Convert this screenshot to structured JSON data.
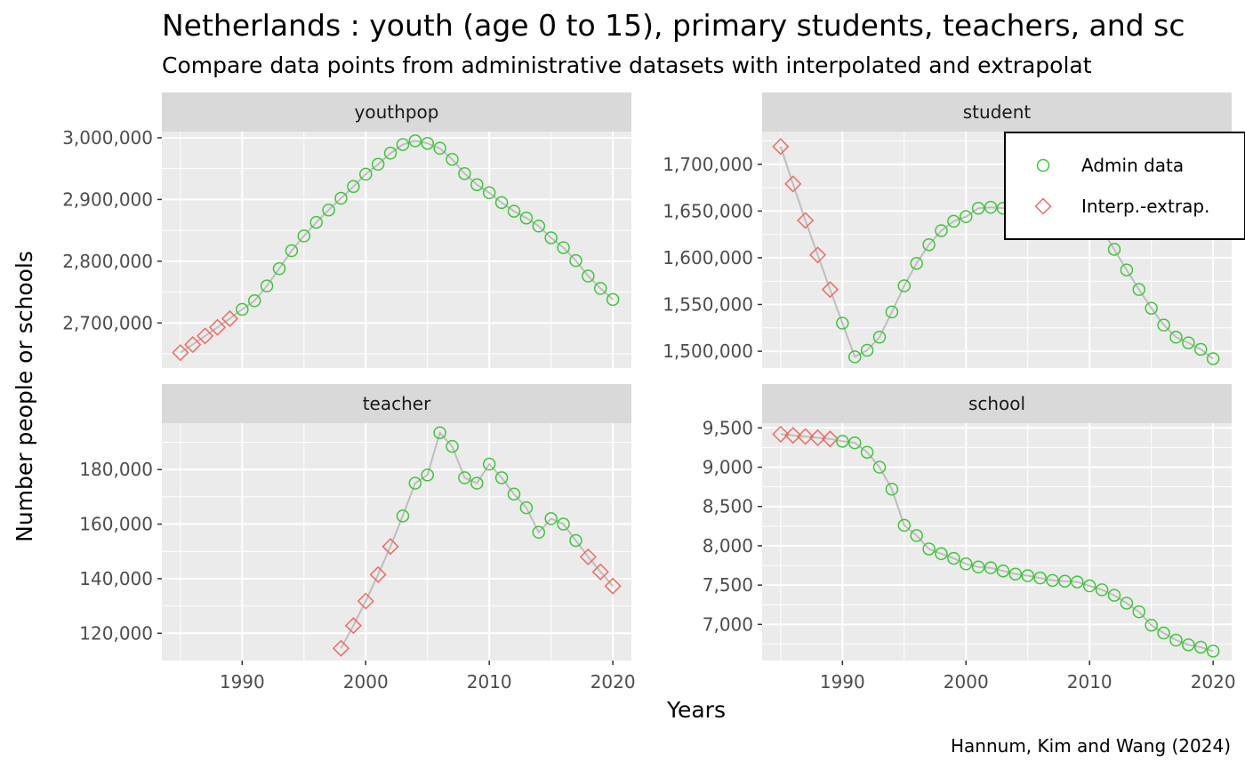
{
  "chart_data": {
    "type": "line",
    "title": "Netherlands : youth (age 0 to 15), primary students, teachers, and sc",
    "subtitle": "Compare data points from administrative datasets with interpolated and extrapolat",
    "xlabel": "Years",
    "ylabel": "Number people or schools",
    "caption": "Hannum, Kim and Wang (2024)",
    "legend": {
      "position": "top-right",
      "entries": [
        {
          "key": "admin",
          "label": "Admin data",
          "shape": "circle",
          "color": "#3fc63a"
        },
        {
          "key": "interp",
          "label": "Interp.-extrap.",
          "shape": "diamond",
          "color": "#f06b63"
        }
      ]
    },
    "line_color": "#bebebe",
    "panel_color": "#ebebeb",
    "strip_color": "#d9d9d9",
    "grid": true,
    "xlim": [
      1983.5,
      2021.5
    ],
    "xticks": [
      1990,
      2000,
      2010,
      2020
    ],
    "panels": [
      {
        "name": "youthpop",
        "ylim": [
          2627000,
          3010000
        ],
        "yticks": [
          2700000,
          2800000,
          2900000,
          3000000
        ],
        "ytick_labels": [
          "2,700,000",
          "2,800,000",
          "2,900,000",
          "3,000,000"
        ],
        "points": [
          [
            1985,
            2652000,
            "interp"
          ],
          [
            1986,
            2665000,
            "interp"
          ],
          [
            1987,
            2679000,
            "interp"
          ],
          [
            1988,
            2693000,
            "interp"
          ],
          [
            1989,
            2707000,
            "interp"
          ],
          [
            1990,
            2722000,
            "admin"
          ],
          [
            1991,
            2736000,
            "admin"
          ],
          [
            1992,
            2760000,
            "admin"
          ],
          [
            1993,
            2788000,
            "admin"
          ],
          [
            1994,
            2817000,
            "admin"
          ],
          [
            1995,
            2841000,
            "admin"
          ],
          [
            1996,
            2863000,
            "admin"
          ],
          [
            1997,
            2883000,
            "admin"
          ],
          [
            1998,
            2902000,
            "admin"
          ],
          [
            1999,
            2921000,
            "admin"
          ],
          [
            2000,
            2941000,
            "admin"
          ],
          [
            2001,
            2957000,
            "admin"
          ],
          [
            2002,
            2975000,
            "admin"
          ],
          [
            2003,
            2989000,
            "admin"
          ],
          [
            2004,
            2995000,
            "admin"
          ],
          [
            2005,
            2991000,
            "admin"
          ],
          [
            2006,
            2983000,
            "admin"
          ],
          [
            2007,
            2965000,
            "admin"
          ],
          [
            2008,
            2942000,
            "admin"
          ],
          [
            2009,
            2924000,
            "admin"
          ],
          [
            2010,
            2911000,
            "admin"
          ],
          [
            2011,
            2895000,
            "admin"
          ],
          [
            2012,
            2881000,
            "admin"
          ],
          [
            2013,
            2870000,
            "admin"
          ],
          [
            2014,
            2857000,
            "admin"
          ],
          [
            2015,
            2838000,
            "admin"
          ],
          [
            2016,
            2822000,
            "admin"
          ],
          [
            2017,
            2801000,
            "admin"
          ],
          [
            2018,
            2776000,
            "admin"
          ],
          [
            2019,
            2756000,
            "admin"
          ],
          [
            2020,
            2738000,
            "admin"
          ]
        ]
      },
      {
        "name": "student",
        "ylim": [
          1482000,
          1735000
        ],
        "yticks": [
          1500000,
          1550000,
          1600000,
          1650000,
          1700000
        ],
        "ytick_labels": [
          "1,500,000",
          "1,550,000",
          "1,600,000",
          "1,650,000",
          "1,700,000"
        ],
        "points": [
          [
            1985,
            1719000,
            "interp"
          ],
          [
            1986,
            1679000,
            "interp"
          ],
          [
            1987,
            1640000,
            "interp"
          ],
          [
            1988,
            1603000,
            "interp"
          ],
          [
            1989,
            1566000,
            "interp"
          ],
          [
            1990,
            1530000,
            "admin"
          ],
          [
            1991,
            1494000,
            "admin"
          ],
          [
            1992,
            1501000,
            "admin"
          ],
          [
            1993,
            1515000,
            "admin"
          ],
          [
            1994,
            1542000,
            "admin"
          ],
          [
            1995,
            1570000,
            "admin"
          ],
          [
            1996,
            1594000,
            "admin"
          ],
          [
            1997,
            1614000,
            "admin"
          ],
          [
            1998,
            1629000,
            "admin"
          ],
          [
            1999,
            1639000,
            "admin"
          ],
          [
            2000,
            1644000,
            "admin"
          ],
          [
            2001,
            1653000,
            "admin"
          ],
          [
            2002,
            1654000,
            "admin"
          ],
          [
            2003,
            1653000,
            "admin"
          ],
          [
            2004,
            1656000,
            "admin"
          ],
          [
            2005,
            1660000,
            "admin"
          ],
          [
            2006,
            1664000,
            "admin"
          ],
          [
            2007,
            1667000,
            "admin"
          ],
          [
            2008,
            1665000,
            "admin"
          ],
          [
            2009,
            1660000,
            "admin"
          ],
          [
            2010,
            1647000,
            "admin"
          ],
          [
            2011,
            1630000,
            "admin"
          ],
          [
            2012,
            1609000,
            "admin"
          ],
          [
            2013,
            1587000,
            "admin"
          ],
          [
            2014,
            1566000,
            "admin"
          ],
          [
            2015,
            1546000,
            "admin"
          ],
          [
            2016,
            1528000,
            "admin"
          ],
          [
            2017,
            1515000,
            "admin"
          ],
          [
            2018,
            1509000,
            "admin"
          ],
          [
            2019,
            1502000,
            "admin"
          ],
          [
            2020,
            1492000,
            "admin"
          ]
        ]
      },
      {
        "name": "teacher",
        "ylim": [
          110000,
          197000
        ],
        "yticks": [
          120000,
          140000,
          160000,
          180000
        ],
        "ytick_labels": [
          "120,000",
          "140,000",
          "160,000",
          "180,000"
        ],
        "points": [
          [
            1998,
            114500,
            "interp"
          ],
          [
            1999,
            122800,
            "interp"
          ],
          [
            2000,
            131800,
            "interp"
          ],
          [
            2001,
            141500,
            "interp"
          ],
          [
            2002,
            151800,
            "interp"
          ],
          [
            2003,
            163000,
            "admin"
          ],
          [
            2004,
            175000,
            "admin"
          ],
          [
            2005,
            178000,
            "admin"
          ],
          [
            2006,
            193500,
            "admin"
          ],
          [
            2007,
            188500,
            "admin"
          ],
          [
            2008,
            177000,
            "admin"
          ],
          [
            2009,
            175000,
            "admin"
          ],
          [
            2010,
            182000,
            "admin"
          ],
          [
            2011,
            177000,
            "admin"
          ],
          [
            2012,
            171000,
            "admin"
          ],
          [
            2013,
            166000,
            "admin"
          ],
          [
            2014,
            157000,
            "admin"
          ],
          [
            2015,
            162000,
            "admin"
          ],
          [
            2016,
            160000,
            "admin"
          ],
          [
            2017,
            154000,
            "admin"
          ],
          [
            2018,
            148000,
            "interp"
          ],
          [
            2019,
            142500,
            "interp"
          ],
          [
            2020,
            137300,
            "interp"
          ]
        ]
      },
      {
        "name": "school",
        "ylim": [
          6540,
          9560
        ],
        "yticks": [
          7000,
          7500,
          8000,
          8500,
          9000,
          9500
        ],
        "ytick_labels": [
          "7,000",
          "7,500",
          "8,000",
          "8,500",
          "9,000",
          "9,500"
        ],
        "points": [
          [
            1985,
            9420,
            "interp"
          ],
          [
            1986,
            9405,
            "interp"
          ],
          [
            1987,
            9390,
            "interp"
          ],
          [
            1988,
            9375,
            "interp"
          ],
          [
            1989,
            9360,
            "interp"
          ],
          [
            1990,
            9330,
            "admin"
          ],
          [
            1991,
            9310,
            "admin"
          ],
          [
            1992,
            9190,
            "admin"
          ],
          [
            1993,
            9000,
            "admin"
          ],
          [
            1994,
            8720,
            "admin"
          ],
          [
            1995,
            8260,
            "admin"
          ],
          [
            1996,
            8130,
            "admin"
          ],
          [
            1997,
            7960,
            "admin"
          ],
          [
            1998,
            7900,
            "admin"
          ],
          [
            1999,
            7840,
            "admin"
          ],
          [
            2000,
            7770,
            "admin"
          ],
          [
            2001,
            7730,
            "admin"
          ],
          [
            2002,
            7720,
            "admin"
          ],
          [
            2003,
            7680,
            "admin"
          ],
          [
            2004,
            7640,
            "admin"
          ],
          [
            2005,
            7620,
            "admin"
          ],
          [
            2006,
            7590,
            "admin"
          ],
          [
            2007,
            7560,
            "admin"
          ],
          [
            2008,
            7550,
            "admin"
          ],
          [
            2009,
            7540,
            "admin"
          ],
          [
            2010,
            7490,
            "admin"
          ],
          [
            2011,
            7440,
            "admin"
          ],
          [
            2012,
            7370,
            "admin"
          ],
          [
            2013,
            7270,
            "admin"
          ],
          [
            2014,
            7160,
            "admin"
          ],
          [
            2015,
            6990,
            "admin"
          ],
          [
            2016,
            6890,
            "admin"
          ],
          [
            2017,
            6800,
            "admin"
          ],
          [
            2018,
            6740,
            "admin"
          ],
          [
            2019,
            6710,
            "admin"
          ],
          [
            2020,
            6660,
            "admin"
          ]
        ]
      }
    ]
  }
}
